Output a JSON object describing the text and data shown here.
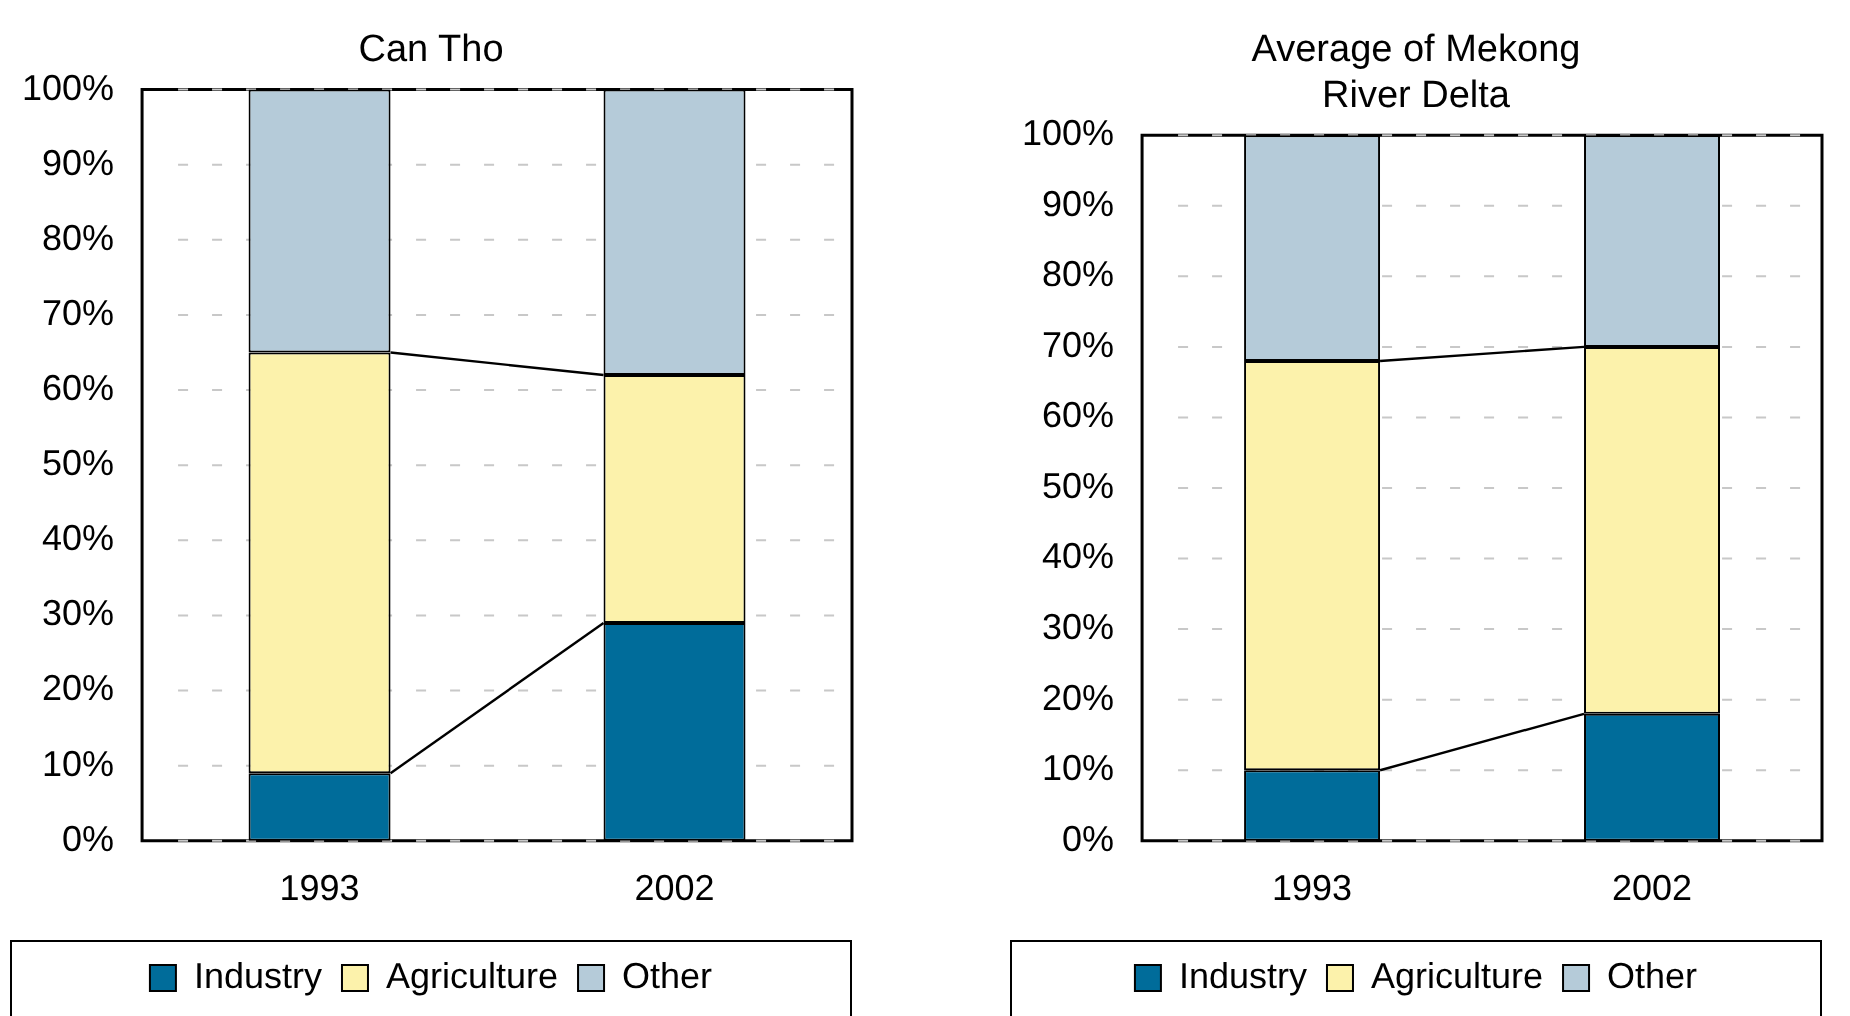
{
  "chart_data": [
    {
      "type": "bar",
      "title": "Can Tho",
      "categories": [
        "1993",
        "2002"
      ],
      "stacked": true,
      "series": [
        {
          "name": "Industry",
          "color": "#006c9a",
          "values": [
            9,
            29
          ]
        },
        {
          "name": "Agriculture",
          "color": "#fcf2ab",
          "values": [
            56,
            33
          ]
        },
        {
          "name": "Other",
          "color": "#b5cbd9",
          "values": [
            35,
            38
          ]
        }
      ],
      "ylim": [
        0,
        100
      ],
      "yticks": [
        {
          "value": 0,
          "label": "0%"
        },
        {
          "value": 10,
          "label": "10%"
        },
        {
          "value": 20,
          "label": "20%"
        },
        {
          "value": 30,
          "label": "30%"
        },
        {
          "value": 40,
          "label": "40%"
        },
        {
          "value": 50,
          "label": "50%"
        },
        {
          "value": 60,
          "label": "60%"
        },
        {
          "value": 70,
          "label": "70%"
        },
        {
          "value": 80,
          "label": "80%"
        },
        {
          "value": 90,
          "label": "90%"
        },
        {
          "value": 100,
          "label": "100%"
        }
      ],
      "grid": "y",
      "legend": "bottom"
    },
    {
      "type": "bar",
      "title": "Average of Mekong River Delta",
      "categories": [
        "1993",
        "2002"
      ],
      "stacked": true,
      "series": [
        {
          "name": "Industry",
          "color": "#006c9a",
          "values": [
            10,
            18
          ]
        },
        {
          "name": "Agriculture",
          "color": "#fcf2ab",
          "values": [
            58,
            52
          ]
        },
        {
          "name": "Other",
          "color": "#b5cbd9",
          "values": [
            32,
            30
          ]
        }
      ],
      "ylim": [
        0,
        100
      ],
      "yticks": [
        {
          "value": 0,
          "label": "0%"
        },
        {
          "value": 10,
          "label": "10%"
        },
        {
          "value": 20,
          "label": "20%"
        },
        {
          "value": 30,
          "label": "30%"
        },
        {
          "value": 40,
          "label": "40%"
        },
        {
          "value": 50,
          "label": "50%"
        },
        {
          "value": 60,
          "label": "60%"
        },
        {
          "value": 70,
          "label": "70%"
        },
        {
          "value": 80,
          "label": "80%"
        },
        {
          "value": 90,
          "label": "90%"
        },
        {
          "value": 100,
          "label": "100%"
        }
      ],
      "grid": "y",
      "legend": "bottom"
    }
  ]
}
